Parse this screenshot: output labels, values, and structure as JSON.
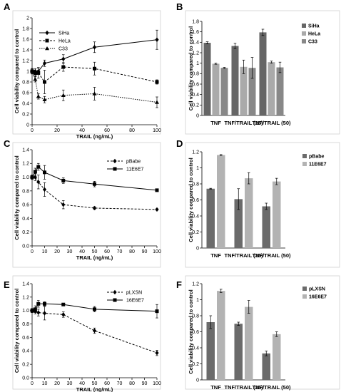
{
  "chart_data": [
    {
      "panel": "A",
      "type": "line",
      "xlabel": "TRAIL (ng/mL)",
      "ylabel": "Cell viability compared to control",
      "xlim": [
        0,
        100
      ],
      "ylim": [
        0,
        2
      ],
      "xticks": [
        0,
        20,
        40,
        60,
        80,
        100
      ],
      "yticks": [
        0,
        0.2,
        0.4,
        0.6,
        0.8,
        1,
        1.2,
        1.4,
        1.6,
        1.8,
        2
      ],
      "legend_position": "top-left",
      "series": [
        {
          "name": "SiHa",
          "style": "solid",
          "marker": "diamond",
          "x": [
            0,
            2.5,
            5,
            10,
            25,
            50,
            100
          ],
          "y": [
            1.0,
            1.0,
            1.0,
            1.15,
            1.23,
            1.45,
            1.59
          ],
          "err": [
            0.05,
            0.05,
            0.06,
            0.06,
            0.08,
            0.1,
            0.18
          ]
        },
        {
          "name": "HeLa",
          "style": "dashed",
          "marker": "square",
          "x": [
            0,
            2.5,
            5,
            10,
            25,
            50,
            100
          ],
          "y": [
            1.0,
            0.96,
            0.97,
            0.8,
            1.08,
            1.05,
            0.8
          ],
          "err": [
            0.04,
            0.06,
            0.1,
            0.22,
            0.08,
            0.12,
            0.04
          ]
        },
        {
          "name": "C33",
          "style": "dotted",
          "marker": "triangle",
          "x": [
            0,
            2.5,
            5,
            10,
            25,
            50,
            100
          ],
          "y": [
            1.0,
            0.85,
            0.53,
            0.47,
            0.55,
            0.58,
            0.42
          ],
          "err": [
            0.05,
            0.05,
            0.05,
            0.06,
            0.1,
            0.12,
            0.1
          ]
        }
      ]
    },
    {
      "panel": "B",
      "type": "bar",
      "categories": [
        "TNF",
        "TNF/TRAIL (25)",
        "TNF/TRAIL (50)"
      ],
      "ylabel": "Cell viability compared to control",
      "ylim": [
        0,
        1.8
      ],
      "yticks": [
        0,
        0.2,
        0.4,
        0.6,
        0.8,
        1,
        1.2,
        1.4,
        1.6,
        1.8
      ],
      "legend_position": "top-right",
      "series": [
        {
          "name": "SiHa",
          "color": "#666666",
          "values": [
            1.39,
            1.33,
            1.59
          ],
          "err": [
            0.02,
            0.05,
            0.06
          ]
        },
        {
          "name": "HeLa",
          "color": "#aaaaaa",
          "values": [
            0.99,
            0.93,
            1.02
          ],
          "err": [
            0.01,
            0.13,
            0.02
          ]
        },
        {
          "name": "C33",
          "color": "#888888",
          "values": [
            0.91,
            0.91,
            0.92
          ],
          "err": [
            0.01,
            0.2,
            0.1
          ]
        }
      ]
    },
    {
      "panel": "C",
      "type": "line",
      "xlabel": "TRAIL (ng/mL)",
      "ylabel": "Cell viability compared to control",
      "xlim": [
        0,
        100
      ],
      "ylim": [
        0,
        1.4
      ],
      "xticks": [
        0,
        10,
        20,
        30,
        40,
        50,
        60,
        70,
        80,
        90,
        100
      ],
      "yticks": [
        0,
        0.2,
        0.4,
        0.6,
        0.8,
        1.0,
        1.2,
        1.4
      ],
      "legend_position": "top-right",
      "series": [
        {
          "name": "pBabe",
          "style": "dashed",
          "marker": "diamond",
          "x": [
            0,
            2.5,
            5,
            10,
            25,
            50,
            100
          ],
          "y": [
            1.0,
            1.0,
            0.93,
            0.82,
            0.6,
            0.55,
            0.53
          ],
          "err": [
            0.03,
            0.05,
            0.1,
            0.1,
            0.06,
            0.02,
            0.01
          ]
        },
        {
          "name": "11E6E7",
          "style": "solid",
          "marker": "square",
          "x": [
            0,
            2.5,
            5,
            10,
            25,
            50,
            100
          ],
          "y": [
            1.0,
            1.08,
            1.15,
            1.07,
            0.95,
            0.9,
            0.81
          ],
          "err": [
            0.03,
            0.05,
            0.05,
            0.1,
            0.04,
            0.04,
            0.01
          ]
        }
      ]
    },
    {
      "panel": "D",
      "type": "bar",
      "categories": [
        "TNF",
        "TNF/TRAIL (25)",
        "TNF/TRAIL (50)"
      ],
      "ylabel": "Cell viability compared to control",
      "ylim": [
        0,
        1.2
      ],
      "yticks": [
        0,
        0.2,
        0.4,
        0.6,
        0.8,
        1,
        1.2
      ],
      "legend_position": "top-right",
      "series": [
        {
          "name": "pBabe",
          "color": "#6b6b6b",
          "values": [
            0.74,
            0.61,
            0.52
          ],
          "err": [
            0.005,
            0.13,
            0.04
          ]
        },
        {
          "name": "11E6E7",
          "color": "#b3b3b3",
          "values": [
            1.16,
            0.87,
            0.83
          ],
          "err": [
            0.005,
            0.07,
            0.04
          ]
        }
      ]
    },
    {
      "panel": "E",
      "type": "line",
      "xlabel": "TRAIL (ng/mL)",
      "ylabel": "Cell viability compared to control",
      "xlim": [
        0,
        100
      ],
      "ylim": [
        0,
        1.4
      ],
      "xticks": [
        0,
        10,
        20,
        30,
        40,
        50,
        60,
        70,
        80,
        90,
        100
      ],
      "yticks": [
        0,
        0.2,
        0.4,
        0.6,
        0.8,
        1.0,
        1.2,
        1.4
      ],
      "legend_position": "top-right",
      "series": [
        {
          "name": "pLXSN",
          "style": "dashed",
          "marker": "diamond",
          "x": [
            0,
            2.5,
            5,
            10,
            25,
            50,
            100
          ],
          "y": [
            1.0,
            0.99,
            0.97,
            0.96,
            0.94,
            0.7,
            0.37
          ],
          "err": [
            0.03,
            0.04,
            0.05,
            0.1,
            0.04,
            0.04,
            0.04
          ]
        },
        {
          "name": "16E6E7",
          "style": "solid",
          "marker": "square",
          "x": [
            0,
            2.5,
            5,
            10,
            25,
            50,
            100
          ],
          "y": [
            1.0,
            1.02,
            1.1,
            1.1,
            1.09,
            1.02,
            0.99
          ],
          "err": [
            0.03,
            0.05,
            0.05,
            0.03,
            0.02,
            0.04,
            0.1
          ]
        }
      ]
    },
    {
      "panel": "F",
      "type": "bar",
      "categories": [
        "TNF",
        "TNF/TRAIL (25)",
        "TNF/TRAIL (50)"
      ],
      "ylabel": "Cell viability compared to control",
      "ylim": [
        0,
        1.2
      ],
      "yticks": [
        0,
        0.2,
        0.4,
        0.6,
        0.8,
        1,
        1.2
      ],
      "legend_position": "top-right",
      "series": [
        {
          "name": "pLXSN",
          "color": "#6b6b6b",
          "values": [
            0.72,
            0.7,
            0.33
          ],
          "err": [
            0.08,
            0.02,
            0.03
          ]
        },
        {
          "name": "16E6E7",
          "color": "#b3b3b3",
          "values": [
            1.11,
            0.91,
            0.57
          ],
          "err": [
            0.02,
            0.08,
            0.03
          ]
        }
      ]
    }
  ]
}
